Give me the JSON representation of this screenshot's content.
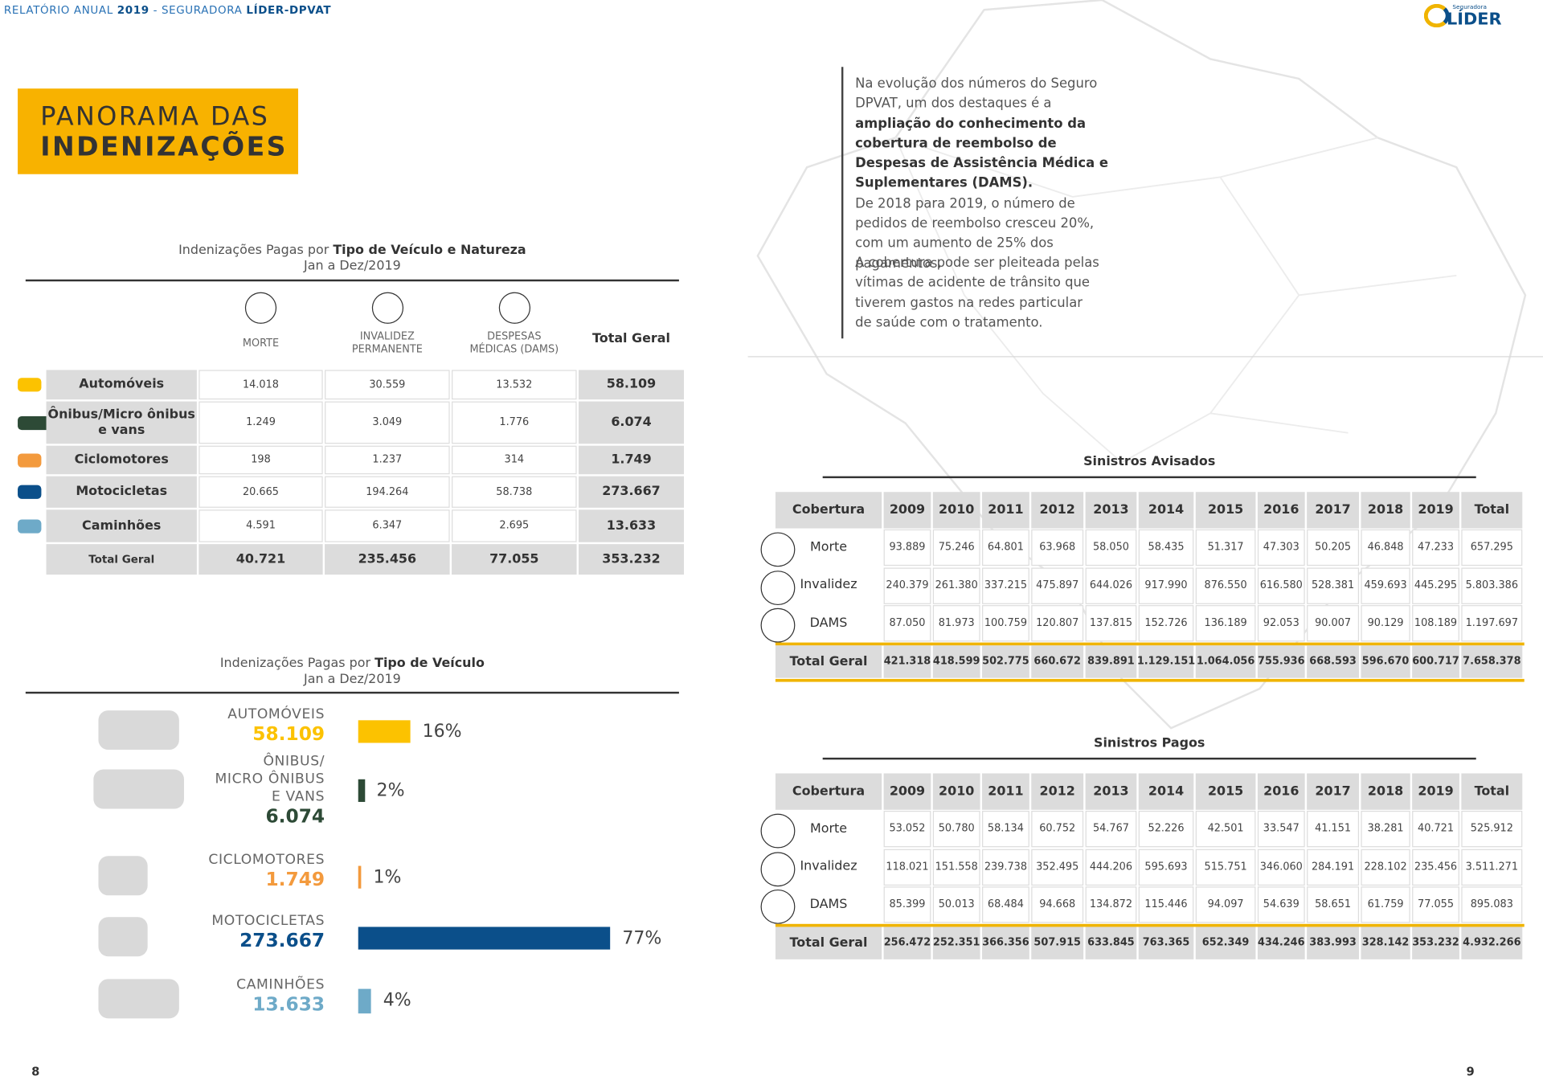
{
  "header": {
    "running_title": [
      {
        "text": "RELATÓRIO ANUAL ",
        "bold": false
      },
      {
        "text": "2019",
        "bold": true
      },
      {
        "text": " - SEGURADORA ",
        "bold": false
      },
      {
        "text": "LÍDER-DPVAT",
        "bold": true
      }
    ],
    "logo_small": "Seguradora",
    "logo": "LÍDER"
  },
  "section_title": {
    "line1": "PANORAMA DAS",
    "line2": "INDENIZAÇÕES"
  },
  "vehicle_table": {
    "title_prefix": "Indenizações Pagas por ",
    "title_bold": "Tipo de Veículo e Natureza",
    "period": "Jan a Dez/2019",
    "columns": [
      "MORTE",
      "INVALIDEZ\nPERMANENTE",
      "DESPESAS\nMÉDICAS (DAMS)",
      "Total Geral"
    ],
    "rows": [
      [
        "Automóveis",
        "14.018",
        "30.559",
        "13.532",
        "58.109"
      ],
      [
        "Ônibus/Micro ônibus\ne vans",
        "1.249",
        "3.049",
        "1.776",
        "6.074"
      ],
      [
        "Ciclomotores",
        "198",
        "1.237",
        "314",
        "1.749"
      ],
      [
        "Motocicletas",
        "20.665",
        "194.264",
        "58.738",
        "273.667"
      ],
      [
        "Caminhões",
        "4.591",
        "6.347",
        "2.695",
        "13.633"
      ]
    ],
    "total": [
      "Total Geral",
      "40.721",
      "235.456",
      "77.055",
      "353.232"
    ]
  },
  "chart_data": {
    "type": "bar",
    "title_prefix": "Indenizações Pagas por ",
    "title_bold": "Tipo de Veículo",
    "period": "Jan a Dez/2019",
    "categories": [
      "AUTOMÓVEIS",
      "ÔNIBUS/\nMICRO ÔNIBUS\nE VANS",
      "CICLOMOTORES",
      "MOTOCICLETAS",
      "CAMINHÕES"
    ],
    "counts": [
      "58.109",
      "6.074",
      "1.749",
      "273.667",
      "13.633"
    ],
    "values": [
      16,
      2,
      1,
      77,
      4
    ],
    "value_labels": [
      "16%",
      "2%",
      "1%",
      "77%",
      "4%"
    ],
    "colors": [
      "#fcc200",
      "#2d4a36",
      "#f39a3d",
      "#0b4f8a",
      "#6eaac8"
    ]
  },
  "intro": {
    "paragraph1": [
      {
        "text": "Na evolução dos números do Seguro DPVAT, um dos destaques é a ",
        "bold": false
      },
      {
        "text": "ampliação do conhecimento da cobertura de reembolso de Despesas de Assistência Médica e Suplementares (DAMS).",
        "bold": true
      },
      {
        "text": "\nDe 2018 para 2019, o número de pedidos de reembolso cresceu 20%, com um aumento de 25% dos pagamentos.",
        "bold": false
      }
    ],
    "paragraph2": "A cobertura pode ser pleiteada pelas vítimas de acidente de trânsito que tiverem gastos na redes particular de saúde com o tratamento."
  },
  "avisados": {
    "title": "Sinistros Avisados",
    "header": [
      "Cobertura",
      "2009",
      "2010",
      "2011",
      "2012",
      "2013",
      "2014",
      "2015",
      "2016",
      "2017",
      "2018",
      "2019",
      "Total"
    ],
    "rows": [
      [
        "Morte",
        "93.889",
        "75.246",
        "64.801",
        "63.968",
        "58.050",
        "58.435",
        "51.317",
        "47.303",
        "50.205",
        "46.848",
        "47.233",
        "657.295"
      ],
      [
        "Invalidez",
        "240.379",
        "261.380",
        "337.215",
        "475.897",
        "644.026",
        "917.990",
        "876.550",
        "616.580",
        "528.381",
        "459.693",
        "445.295",
        "5.803.386"
      ],
      [
        "DAMS",
        "87.050",
        "81.973",
        "100.759",
        "120.807",
        "137.815",
        "152.726",
        "136.189",
        "92.053",
        "90.007",
        "90.129",
        "108.189",
        "1.197.697"
      ]
    ],
    "total": [
      "Total Geral",
      "421.318",
      "418.599",
      "502.775",
      "660.672",
      "839.891",
      "1.129.151",
      "1.064.056",
      "755.936",
      "668.593",
      "596.670",
      "600.717",
      "7.658.378"
    ]
  },
  "pagos": {
    "title": "Sinistros Pagos",
    "header": [
      "Cobertura",
      "2009",
      "2010",
      "2011",
      "2012",
      "2013",
      "2014",
      "2015",
      "2016",
      "2017",
      "2018",
      "2019",
      "Total"
    ],
    "rows": [
      [
        "Morte",
        "53.052",
        "50.780",
        "58.134",
        "60.752",
        "54.767",
        "52.226",
        "42.501",
        "33.547",
        "41.151",
        "38.281",
        "40.721",
        "525.912"
      ],
      [
        "Invalidez",
        "118.021",
        "151.558",
        "239.738",
        "352.495",
        "444.206",
        "595.693",
        "515.751",
        "346.060",
        "284.191",
        "228.102",
        "235.456",
        "3.511.271"
      ],
      [
        "DAMS",
        "85.399",
        "50.013",
        "68.484",
        "94.668",
        "134.872",
        "115.446",
        "94.097",
        "54.639",
        "58.651",
        "61.759",
        "77.055",
        "895.083"
      ]
    ],
    "total": [
      "Total Geral",
      "256.472",
      "252.351",
      "366.356",
      "507.915",
      "633.845",
      "763.365",
      "652.349",
      "434.246",
      "383.993",
      "328.142",
      "353.232",
      "4.932.266"
    ]
  },
  "page_numbers": [
    "8",
    "9"
  ]
}
